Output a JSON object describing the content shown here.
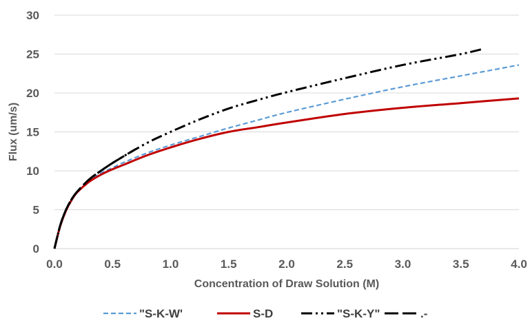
{
  "chart_data": {
    "type": "line",
    "title": "",
    "xlabel": "Concentration of Draw Solution (M)",
    "ylabel": "Flux (um/s)",
    "xlim": [
      0,
      4.0
    ],
    "ylim": [
      0,
      30
    ],
    "xticks": [
      "0.0",
      "0.5",
      "1.0",
      "1.5",
      "2.0",
      "2.5",
      "3.0",
      "3.5",
      "4.0"
    ],
    "yticks": [
      "0",
      "5",
      "10",
      "15",
      "20",
      "25",
      "30"
    ],
    "grid": "horizontal",
    "legend_position": "bottom",
    "series": [
      {
        "name": "\"S-K-W'",
        "color": "#5B9BD5",
        "style": "dashed",
        "x": [
          0.0,
          0.05,
          0.1,
          0.15,
          0.2,
          0.3,
          0.4,
          0.5,
          0.6,
          0.8,
          1.0,
          1.25,
          1.5,
          1.75,
          2.0,
          2.5,
          3.0,
          3.5,
          4.0
        ],
        "y": [
          0.0,
          2.9,
          4.9,
          6.3,
          7.3,
          8.7,
          9.7,
          10.4,
          11.1,
          12.3,
          13.3,
          14.4,
          15.5,
          16.5,
          17.5,
          19.2,
          20.8,
          22.2,
          23.6
        ]
      },
      {
        "name": "S-D",
        "color": "#C00000",
        "style": "solid",
        "x": [
          0.0,
          0.05,
          0.1,
          0.15,
          0.2,
          0.3,
          0.4,
          0.5,
          0.6,
          0.8,
          1.0,
          1.25,
          1.5,
          1.75,
          2.0,
          2.5,
          3.0,
          3.5,
          4.0
        ],
        "y": [
          0.0,
          2.9,
          4.9,
          6.3,
          7.3,
          8.6,
          9.5,
          10.2,
          10.8,
          12.0,
          13.0,
          14.1,
          15.0,
          15.6,
          16.2,
          17.3,
          18.1,
          18.7,
          19.3
        ]
      },
      {
        "name": "\"S-K-Y\"",
        "color": "#000000",
        "style": "dash-dot-dot",
        "x": [
          0.0,
          0.05,
          0.1,
          0.15,
          0.2,
          0.3,
          0.4,
          0.5,
          0.6,
          0.8,
          1.0,
          1.25,
          1.5,
          1.75,
          2.0,
          2.5,
          3.0,
          3.5,
          3.7
        ],
        "y": [
          0.0,
          3.0,
          5.0,
          6.4,
          7.4,
          8.9,
          10.0,
          11.0,
          11.9,
          13.6,
          15.0,
          16.6,
          18.0,
          19.1,
          20.1,
          21.9,
          23.6,
          25.0,
          25.7
        ]
      },
      {
        "name": ".-",
        "color": "#000000",
        "style": "long-dash",
        "x": [
          0.0,
          0.05,
          0.1,
          0.15,
          0.2,
          0.3,
          0.4,
          0.5,
          0.6,
          0.7
        ],
        "y": [
          0.0,
          3.0,
          5.0,
          6.4,
          7.4,
          8.9,
          10.0,
          11.0,
          11.9,
          12.8
        ]
      }
    ]
  }
}
